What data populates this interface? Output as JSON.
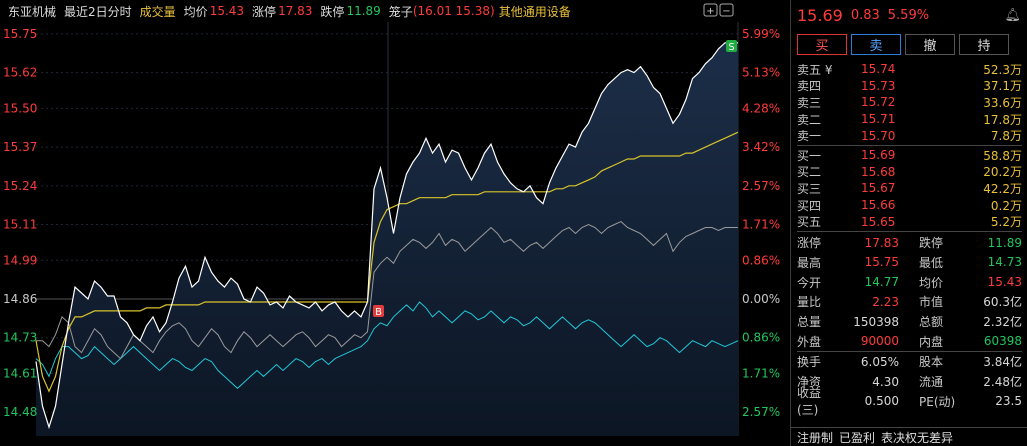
{
  "header": {
    "stock_name": "东亚机械",
    "period": "最近2日分时",
    "indicator": "成交量",
    "avg_label": "均价",
    "avg_value": "15.43",
    "limit_up_label": "涨停",
    "limit_up_value": "17.83",
    "limit_down_label": "跌停",
    "limit_down_value": "11.89",
    "cage_label": "笼子",
    "cage_value": "(16.01 15.38)",
    "industry": "其他通用设备"
  },
  "colors": {
    "up": "#ff3b3b",
    "down": "#22c55e",
    "text": "#c8c8c8",
    "yellow": "#e8c03a",
    "cyan": "#1ec8d8",
    "price_line": "#ffffff",
    "avg_line": "#d9c32b",
    "fill": "#1a2a40"
  },
  "y_axis_left": [
    "15.75",
    "15.62",
    "15.50",
    "15.37",
    "15.24",
    "15.11",
    "14.99",
    "14.86",
    "14.73",
    "14.61",
    "14.48"
  ],
  "y_axis_right": [
    "5.99%",
    "5.13%",
    "4.28%",
    "3.42%",
    "2.57%",
    "1.71%",
    "0.86%",
    "0.00%",
    "0.86%",
    "1.71%",
    "2.57%"
  ],
  "chart_data": {
    "type": "line",
    "y_range": [
      14.4,
      15.79
    ],
    "prev_close": 14.86,
    "markers": [
      {
        "label": "B",
        "near_value": 14.81
      },
      {
        "label": "S",
        "near_value": 15.71
      }
    ],
    "series": [
      {
        "values": [
          14.65,
          14.5,
          14.43,
          14.5,
          14.64,
          14.78,
          14.9,
          14.88,
          14.86,
          14.92,
          14.9,
          14.87,
          14.87,
          14.8,
          14.78,
          14.74,
          14.72,
          14.77,
          14.8,
          14.75,
          14.78,
          14.85,
          14.93,
          14.97,
          14.9,
          14.92,
          15.0,
          14.95,
          14.92,
          14.9,
          14.93,
          14.91,
          14.86,
          14.85,
          14.9,
          14.88,
          14.84,
          14.85,
          14.83,
          14.87,
          14.85,
          14.84,
          14.83,
          14.85,
          14.82,
          14.84,
          14.85,
          14.82,
          14.8,
          14.82,
          14.8,
          14.85,
          15.23,
          15.3,
          15.2,
          15.08,
          15.2,
          15.28,
          15.32,
          15.35,
          15.4,
          15.35,
          15.38,
          15.32,
          15.36,
          15.35,
          15.3,
          15.26,
          15.3,
          15.35,
          15.38,
          15.32,
          15.28,
          15.25,
          15.23,
          15.22,
          15.24,
          15.2,
          15.18,
          15.25,
          15.3,
          15.34,
          15.38,
          15.37,
          15.42,
          15.45,
          15.5,
          15.55,
          15.58,
          15.6,
          15.62,
          15.63,
          15.62,
          15.64,
          15.61,
          15.57,
          15.55,
          15.5,
          15.45,
          15.48,
          15.53,
          15.6,
          15.62,
          15.65,
          15.67,
          15.7,
          15.72,
          15.72,
          15.72
        ]
      },
      {
        "values": [
          14.72,
          14.6,
          14.55,
          14.6,
          14.7,
          14.76,
          14.8,
          14.8,
          14.81,
          14.82,
          14.82,
          14.82,
          14.82,
          14.82,
          14.82,
          14.82,
          14.82,
          14.83,
          14.83,
          14.83,
          14.84,
          14.84,
          14.84,
          14.84,
          14.84,
          14.84,
          14.85,
          14.85,
          14.85,
          14.85,
          14.85,
          14.85,
          14.85,
          14.85,
          14.85,
          14.85,
          14.85,
          14.85,
          14.85,
          14.85,
          14.85,
          14.85,
          14.85,
          14.85,
          14.85,
          14.85,
          14.85,
          14.85,
          14.85,
          14.85,
          14.85,
          14.85,
          15.05,
          15.12,
          15.16,
          15.17,
          15.18,
          15.18,
          15.19,
          15.2,
          15.2,
          15.2,
          15.2,
          15.2,
          15.21,
          15.21,
          15.21,
          15.21,
          15.21,
          15.22,
          15.22,
          15.22,
          15.22,
          15.22,
          15.22,
          15.22,
          15.22,
          15.22,
          15.22,
          15.22,
          15.23,
          15.23,
          15.24,
          15.24,
          15.25,
          15.26,
          15.27,
          15.29,
          15.3,
          15.31,
          15.32,
          15.33,
          15.33,
          15.34,
          15.34,
          15.34,
          15.34,
          15.34,
          15.34,
          15.34,
          15.35,
          15.35,
          15.36,
          15.37,
          15.38,
          15.39,
          15.4,
          15.41,
          15.42
        ]
      },
      {
        "values": [
          14.72,
          14.72,
          14.7,
          14.74,
          14.8,
          14.78,
          14.7,
          14.68,
          14.72,
          14.76,
          14.74,
          14.7,
          14.68,
          14.66,
          14.7,
          14.74,
          14.72,
          14.7,
          14.68,
          14.72,
          14.75,
          14.77,
          14.78,
          14.76,
          14.72,
          14.7,
          14.73,
          14.76,
          14.74,
          14.7,
          14.68,
          14.72,
          14.75,
          14.73,
          14.7,
          14.72,
          14.74,
          14.72,
          14.7,
          14.72,
          14.74,
          14.75,
          14.73,
          14.7,
          14.72,
          14.74,
          14.73,
          14.7,
          14.72,
          14.74,
          14.73,
          14.75,
          14.95,
          14.98,
          15.0,
          14.98,
          15.02,
          15.04,
          15.06,
          15.05,
          15.03,
          15.05,
          15.08,
          15.04,
          15.06,
          15.05,
          15.02,
          15.04,
          15.06,
          15.08,
          15.1,
          15.08,
          15.05,
          15.06,
          15.04,
          15.02,
          15.04,
          15.05,
          15.03,
          15.05,
          15.07,
          15.09,
          15.1,
          15.08,
          15.1,
          15.11,
          15.1,
          15.08,
          15.1,
          15.11,
          15.12,
          15.1,
          15.09,
          15.08,
          15.06,
          15.04,
          15.06,
          15.08,
          15.02,
          15.05,
          15.07,
          15.08,
          15.09,
          15.1,
          15.1,
          15.09,
          15.1,
          15.1,
          15.1
        ]
      },
      {
        "values": [
          14.66,
          14.64,
          14.6,
          14.66,
          14.7,
          14.7,
          14.68,
          14.66,
          14.67,
          14.7,
          14.68,
          14.66,
          14.64,
          14.66,
          14.68,
          14.7,
          14.68,
          14.66,
          14.64,
          14.62,
          14.64,
          14.66,
          14.65,
          14.63,
          14.62,
          14.64,
          14.66,
          14.65,
          14.62,
          14.6,
          14.58,
          14.56,
          14.58,
          14.6,
          14.62,
          14.6,
          14.62,
          14.64,
          14.62,
          14.64,
          14.66,
          14.65,
          14.63,
          14.65,
          14.66,
          14.64,
          14.66,
          14.67,
          14.68,
          14.69,
          14.7,
          14.72,
          14.76,
          14.78,
          14.77,
          14.8,
          14.82,
          14.84,
          14.82,
          14.85,
          14.83,
          14.8,
          14.82,
          14.8,
          14.78,
          14.8,
          14.82,
          14.81,
          14.79,
          14.8,
          14.82,
          14.8,
          14.78,
          14.8,
          14.79,
          14.77,
          14.78,
          14.8,
          14.78,
          14.76,
          14.78,
          14.8,
          14.78,
          14.76,
          14.78,
          14.79,
          14.78,
          14.76,
          14.74,
          14.72,
          14.7,
          14.72,
          14.74,
          14.72,
          14.7,
          14.71,
          14.73,
          14.72,
          14.7,
          14.68,
          14.7,
          14.72,
          14.71,
          14.7,
          14.72,
          14.71,
          14.7,
          14.71,
          14.72
        ]
      }
    ]
  },
  "quote": {
    "price": "15.69",
    "change": "0.83",
    "pct": "5.59%"
  },
  "buttons": {
    "buy": "买",
    "sell": "卖",
    "cancel": "撤",
    "hold": "持"
  },
  "asks": [
    {
      "label": "卖五 ¥",
      "price": "15.74",
      "vol": "52.3万"
    },
    {
      "label": "卖四",
      "price": "15.73",
      "vol": "37.1万"
    },
    {
      "label": "卖三",
      "price": "15.72",
      "vol": "33.6万"
    },
    {
      "label": "卖二",
      "price": "15.71",
      "vol": "17.8万"
    },
    {
      "label": "卖一",
      "price": "15.70",
      "vol": "7.8万"
    }
  ],
  "bids": [
    {
      "label": "买一",
      "price": "15.69",
      "vol": "58.8万"
    },
    {
      "label": "买二",
      "price": "15.68",
      "vol": "20.2万"
    },
    {
      "label": "买三",
      "price": "15.67",
      "vol": "42.2万"
    },
    {
      "label": "买四",
      "price": "15.66",
      "vol": "0.2万"
    },
    {
      "label": "买五",
      "price": "15.65",
      "vol": "5.2万"
    }
  ],
  "stats": [
    {
      "k1": "涨停",
      "v1": "17.83",
      "c1": "up",
      "k2": "跌停",
      "v2": "11.89",
      "c2": "down"
    },
    {
      "k1": "最高",
      "v1": "15.75",
      "c1": "up",
      "k2": "最低",
      "v2": "14.73",
      "c2": "down"
    },
    {
      "k1": "今开",
      "v1": "14.77",
      "c1": "down",
      "k2": "均价",
      "v2": "15.43",
      "c2": "up"
    },
    {
      "k1": "量比",
      "v1": "2.23",
      "c1": "up",
      "k2": "市值",
      "v2": "60.3亿",
      "c2": "text"
    },
    {
      "k1": "总量",
      "v1": "150398",
      "c1": "text",
      "k2": "总额",
      "v2": "2.32亿",
      "c2": "text"
    },
    {
      "k1": "外盘",
      "v1": "90000",
      "c1": "up",
      "k2": "内盘",
      "v2": "60398",
      "c2": "down"
    }
  ],
  "stats2": [
    {
      "k1": "换手",
      "v1": "6.05%",
      "k2": "股本",
      "v2": "3.84亿"
    },
    {
      "k1": "净资",
      "v1": "4.30",
      "k2": "流通",
      "v2": "2.48亿"
    },
    {
      "k1": "收益(三)",
      "v1": "0.500",
      "k2": "PE(动)",
      "v2": "23.5"
    }
  ],
  "footer": {
    "tags": [
      "注册制",
      "已盈利",
      "表决权无差异"
    ]
  }
}
